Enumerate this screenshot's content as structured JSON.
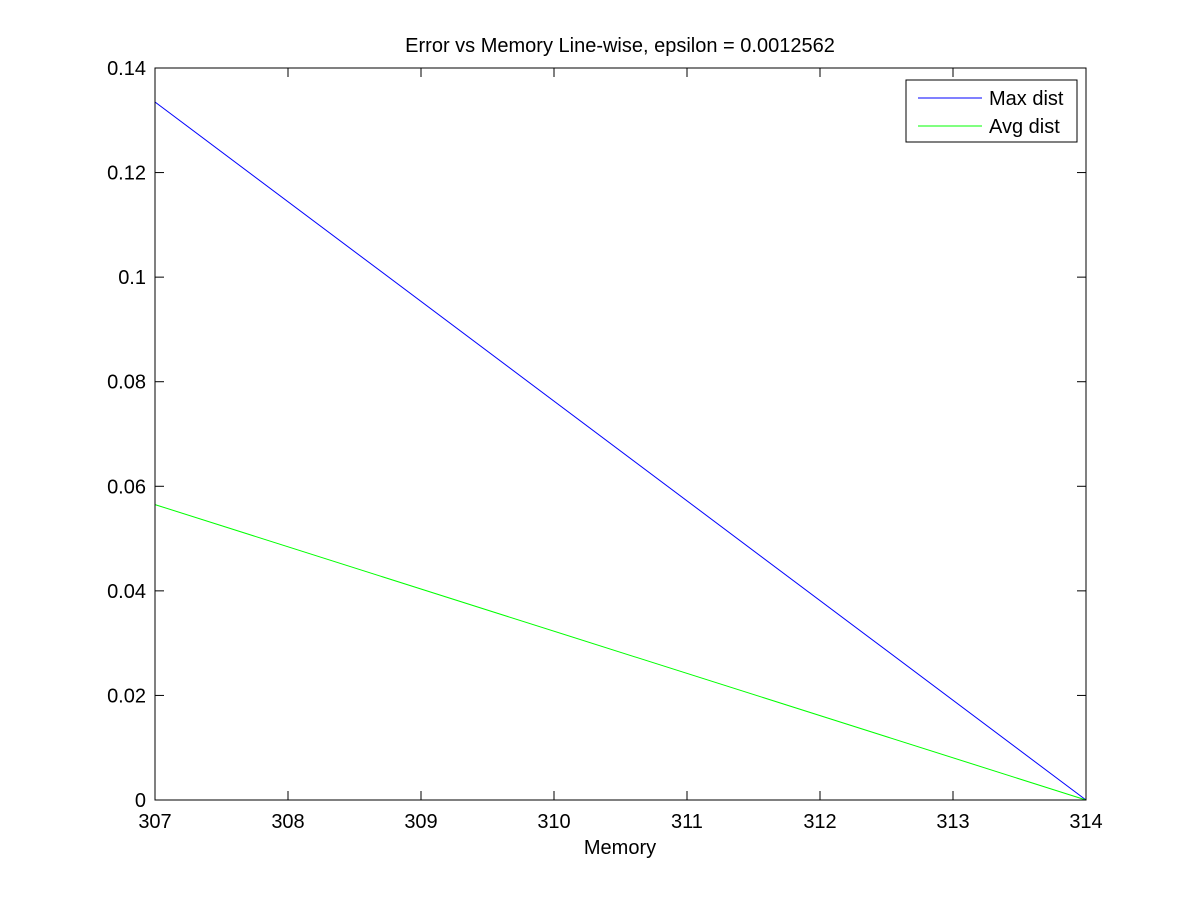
{
  "chart_data": {
    "type": "line",
    "title": "Error vs Memory Line-wise, epsilon = 0.0012562",
    "xlabel": "Memory",
    "ylabel": "",
    "xlim": [
      307,
      314
    ],
    "ylim": [
      0,
      0.14
    ],
    "x_ticks": [
      307,
      308,
      309,
      310,
      311,
      312,
      313,
      314
    ],
    "y_ticks": [
      0,
      0.02,
      0.04,
      0.06,
      0.08,
      0.1,
      0.12,
      0.14
    ],
    "x_tick_labels": [
      "307",
      "308",
      "309",
      "310",
      "311",
      "312",
      "313",
      "314"
    ],
    "y_tick_labels": [
      "0",
      "0.02",
      "0.04",
      "0.06",
      "0.08",
      "0.1",
      "0.12",
      "0.14"
    ],
    "grid": false,
    "legend_position": "top-right",
    "series": [
      {
        "name": "Max dist",
        "color": "#0000ff",
        "x": [
          307,
          314
        ],
        "y": [
          0.1335,
          0.0
        ]
      },
      {
        "name": "Avg dist",
        "color": "#00ff00",
        "x": [
          307,
          314
        ],
        "y": [
          0.0565,
          0.0
        ]
      }
    ]
  }
}
